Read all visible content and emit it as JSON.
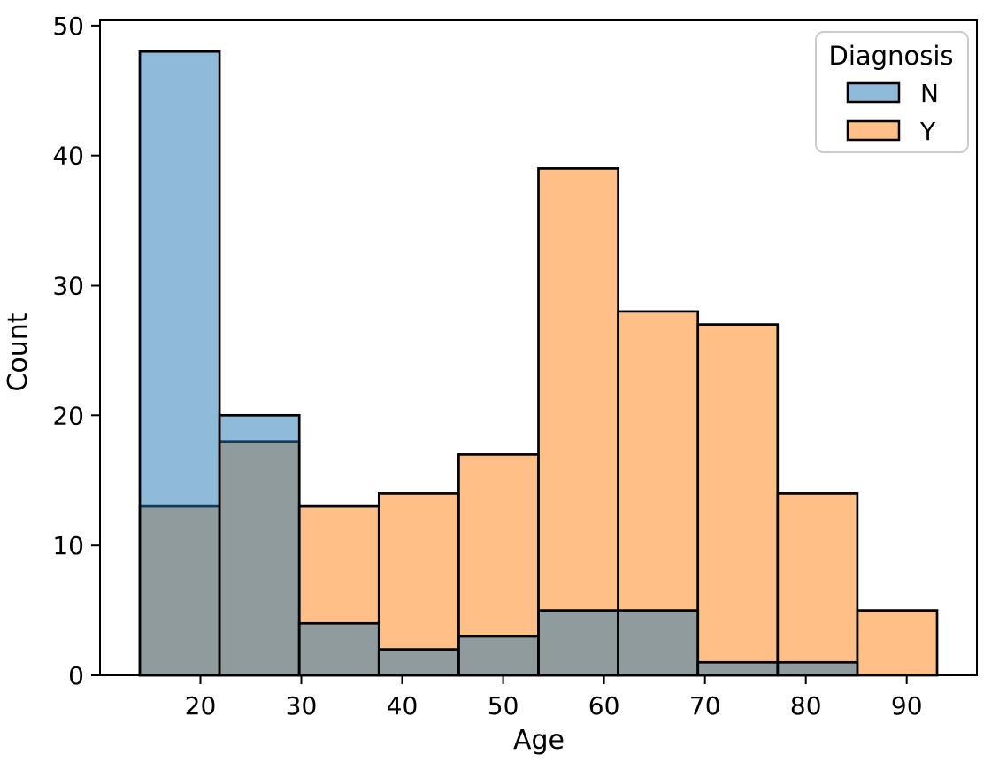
{
  "chart_data": {
    "type": "bar",
    "subtype": "overlaid-histogram",
    "title": "",
    "xlabel": "Age",
    "ylabel": "Count",
    "bin_edges": [
      14.0,
      21.9,
      29.8,
      37.7,
      45.6,
      53.5,
      61.4,
      69.3,
      77.2,
      85.1,
      93.0
    ],
    "series": [
      {
        "name": "N",
        "color": "#1f77b4",
        "fill_alpha": 0.5,
        "values": [
          48,
          20,
          4,
          2,
          3,
          5,
          5,
          1,
          1,
          0
        ]
      },
      {
        "name": "Y",
        "color": "#ff7f0e",
        "fill_alpha": 0.5,
        "values": [
          13,
          18,
          13,
          14,
          17,
          39,
          28,
          27,
          14,
          5
        ]
      }
    ],
    "draw_order": [
      1,
      0
    ],
    "xticks": [
      20,
      30,
      40,
      50,
      60,
      70,
      80,
      90
    ],
    "yticks": [
      0,
      10,
      20,
      30,
      40,
      50
    ],
    "xlim": [
      10.05,
      96.95
    ],
    "ylim": [
      0,
      50.4
    ],
    "grid": false,
    "edge_color": "#000000",
    "spine_color": "#000000",
    "background": "#ffffff",
    "legend": {
      "title": "Diagnosis",
      "position": "upper right",
      "entries": [
        "N",
        "Y"
      ],
      "frame_color": "#cccccc"
    }
  }
}
